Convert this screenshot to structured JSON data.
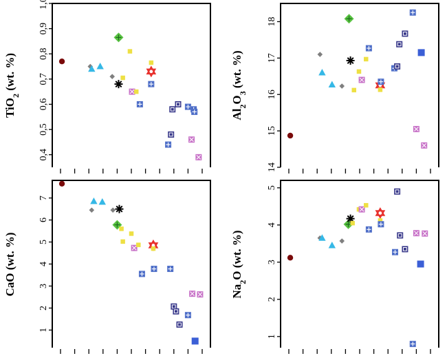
{
  "symbol_colors": {
    "dark_red": "#7a0a0a",
    "gray": "#7f7f7f",
    "cyan": "#35b8e6",
    "green": "#58c241",
    "yellow": "#eee044",
    "magenta_square": "#c873c8",
    "blue_square": "#4f6fc8",
    "navy_square": "#38388a",
    "bright_blue": "#3b5fd6",
    "red_star": "#e8302c",
    "black_asterisk": "#000000"
  },
  "chart_data": [
    {
      "type": "scatter",
      "ylabel": {
        "main": "TiO",
        "sub": "2",
        "rest": " (wt. %)"
      },
      "ylim": [
        0.35,
        1.0
      ],
      "yticks": [
        0.4,
        0.5,
        0.6,
        0.7,
        0.8,
        0.9,
        1.0
      ],
      "ytick_labels": [
        "0,4",
        "0,5",
        "0,6",
        "0,7",
        "0,8",
        "0,9",
        "1,0"
      ],
      "xlim": [
        0,
        10
      ],
      "xticks": [
        0,
        1,
        2,
        3,
        4,
        5,
        6,
        7,
        8,
        9,
        10
      ],
      "points": [
        {
          "x": 0.1,
          "y": 0.77,
          "marker": "circle",
          "color": "dark_red"
        },
        {
          "x": 2.1,
          "y": 0.75,
          "marker": "diamond",
          "color": "gray"
        },
        {
          "x": 2.2,
          "y": 0.74,
          "marker": "triangle",
          "color": "cyan"
        },
        {
          "x": 2.8,
          "y": 0.75,
          "marker": "triangle",
          "color": "cyan"
        },
        {
          "x": 3.65,
          "y": 0.71,
          "marker": "diamond",
          "color": "gray"
        },
        {
          "x": 4.1,
          "y": 0.865,
          "marker": "diamond_plus",
          "color": "green"
        },
        {
          "x": 4.1,
          "y": 0.68,
          "marker": "asterisk",
          "color": "black_asterisk"
        },
        {
          "x": 4.4,
          "y": 0.705,
          "marker": "square",
          "color": "yellow"
        },
        {
          "x": 4.9,
          "y": 0.81,
          "marker": "square",
          "color": "yellow"
        },
        {
          "x": 5.05,
          "y": 0.65,
          "marker": "square_x",
          "color": "magenta_square"
        },
        {
          "x": 5.35,
          "y": 0.65,
          "marker": "square",
          "color": "yellow"
        },
        {
          "x": 5.6,
          "y": 0.6,
          "marker": "square_plus",
          "color": "blue_square"
        },
        {
          "x": 6.4,
          "y": 0.765,
          "marker": "square",
          "color": "yellow"
        },
        {
          "x": 6.4,
          "y": 0.73,
          "marker": "hexstar",
          "color": "red_star"
        },
        {
          "x": 6.4,
          "y": 0.68,
          "marker": "square_plus",
          "color": "blue_square"
        },
        {
          "x": 7.6,
          "y": 0.44,
          "marker": "square_plus",
          "color": "blue_square"
        },
        {
          "x": 7.8,
          "y": 0.48,
          "marker": "square_dot",
          "color": "navy_square"
        },
        {
          "x": 7.9,
          "y": 0.58,
          "marker": "square_dot",
          "color": "navy_square"
        },
        {
          "x": 8.3,
          "y": 0.6,
          "marker": "square_dot",
          "color": "navy_square"
        },
        {
          "x": 9.0,
          "y": 0.59,
          "marker": "square_plus",
          "color": "blue_square"
        },
        {
          "x": 9.25,
          "y": 0.46,
          "marker": "square_x",
          "color": "magenta_square"
        },
        {
          "x": 9.4,
          "y": 0.58,
          "marker": "square_plus",
          "color": "blue_square"
        },
        {
          "x": 9.45,
          "y": 0.57,
          "marker": "square_plus",
          "color": "blue_square"
        },
        {
          "x": 9.75,
          "y": 0.39,
          "marker": "square_x",
          "color": "magenta_square"
        }
      ]
    },
    {
      "type": "scatter",
      "ylabel": {
        "main": "Al",
        "sub": "2",
        "mid": "O",
        "sub2": "3",
        "rest": " (wt. %)"
      },
      "ylim": [
        14.0,
        18.5
      ],
      "yticks": [
        14,
        15,
        16,
        17,
        18
      ],
      "ytick_labels": [
        "14",
        "15",
        "16",
        "17",
        "18"
      ],
      "xlim": [
        0,
        10
      ],
      "xticks": [
        0,
        1,
        2,
        3,
        4,
        5,
        6,
        7,
        8,
        9,
        10
      ],
      "points": [
        {
          "x": 0.1,
          "y": 14.87,
          "marker": "circle",
          "color": "dark_red"
        },
        {
          "x": 2.2,
          "y": 17.1,
          "marker": "diamond",
          "color": "gray"
        },
        {
          "x": 2.35,
          "y": 16.6,
          "marker": "triangle",
          "color": "cyan"
        },
        {
          "x": 3.05,
          "y": 16.27,
          "marker": "triangle",
          "color": "cyan"
        },
        {
          "x": 3.75,
          "y": 16.23,
          "marker": "diamond",
          "color": "gray"
        },
        {
          "x": 4.25,
          "y": 18.08,
          "marker": "diamond_plus",
          "color": "green"
        },
        {
          "x": 4.35,
          "y": 16.93,
          "marker": "asterisk",
          "color": "black_asterisk"
        },
        {
          "x": 4.6,
          "y": 16.12,
          "marker": "square",
          "color": "yellow"
        },
        {
          "x": 4.95,
          "y": 16.63,
          "marker": "square",
          "color": "yellow"
        },
        {
          "x": 5.15,
          "y": 16.4,
          "marker": "square_x",
          "color": "magenta_square"
        },
        {
          "x": 5.45,
          "y": 16.97,
          "marker": "square",
          "color": "yellow"
        },
        {
          "x": 5.65,
          "y": 17.27,
          "marker": "square_plus",
          "color": "blue_square"
        },
        {
          "x": 6.45,
          "y": 16.25,
          "marker": "hexstar",
          "color": "red_star"
        },
        {
          "x": 6.45,
          "y": 16.13,
          "marker": "square",
          "color": "yellow"
        },
        {
          "x": 6.5,
          "y": 16.35,
          "marker": "square_plus",
          "color": "blue_square"
        },
        {
          "x": 7.45,
          "y": 16.72,
          "marker": "square_plus",
          "color": "blue_square"
        },
        {
          "x": 7.65,
          "y": 16.77,
          "marker": "square_dot",
          "color": "navy_square"
        },
        {
          "x": 7.8,
          "y": 17.38,
          "marker": "square_dot",
          "color": "navy_square"
        },
        {
          "x": 8.2,
          "y": 17.67,
          "marker": "square_dot",
          "color": "navy_square"
        },
        {
          "x": 8.75,
          "y": 18.25,
          "marker": "square_plus",
          "color": "blue_square"
        },
        {
          "x": 9.0,
          "y": 15.05,
          "marker": "square_x",
          "color": "magenta_square"
        },
        {
          "x": 9.35,
          "y": 17.15,
          "marker": "square_solid",
          "color": "bright_blue"
        },
        {
          "x": 9.55,
          "y": 14.6,
          "marker": "square_x",
          "color": "magenta_square"
        }
      ]
    },
    {
      "type": "scatter",
      "ylabel": {
        "main": "CaO",
        "rest": " (wt. %)"
      },
      "ylim": [
        0.2,
        7.8
      ],
      "yticks": [
        1,
        2,
        3,
        4,
        5,
        6,
        7
      ],
      "ytick_labels": [
        "1",
        "2",
        "3",
        "4",
        "5",
        "6",
        "7"
      ],
      "xlim": [
        0,
        10
      ],
      "xticks": [
        0,
        1,
        2,
        3,
        4,
        5,
        6,
        7,
        8,
        9,
        10
      ],
      "points": [
        {
          "x": 0.1,
          "y": 7.65,
          "marker": "circle",
          "color": "dark_red"
        },
        {
          "x": 2.2,
          "y": 6.45,
          "marker": "diamond",
          "color": "gray"
        },
        {
          "x": 2.35,
          "y": 6.85,
          "marker": "triangle",
          "color": "cyan"
        },
        {
          "x": 2.95,
          "y": 6.82,
          "marker": "triangle",
          "color": "cyan"
        },
        {
          "x": 3.7,
          "y": 6.45,
          "marker": "diamond",
          "color": "gray"
        },
        {
          "x": 4.15,
          "y": 6.5,
          "marker": "asterisk",
          "color": "black_asterisk"
        },
        {
          "x": 4.0,
          "y": 5.78,
          "marker": "diamond_plus",
          "color": "green"
        },
        {
          "x": 4.3,
          "y": 5.6,
          "marker": "square",
          "color": "yellow"
        },
        {
          "x": 4.4,
          "y": 5.02,
          "marker": "square",
          "color": "yellow"
        },
        {
          "x": 5.0,
          "y": 5.38,
          "marker": "square",
          "color": "yellow"
        },
        {
          "x": 5.2,
          "y": 4.73,
          "marker": "square_x",
          "color": "magenta_square"
        },
        {
          "x": 5.5,
          "y": 4.87,
          "marker": "square",
          "color": "yellow"
        },
        {
          "x": 5.75,
          "y": 3.55,
          "marker": "square_plus",
          "color": "blue_square"
        },
        {
          "x": 6.55,
          "y": 4.85,
          "marker": "hexstar",
          "color": "red_star"
        },
        {
          "x": 6.55,
          "y": 4.7,
          "marker": "square",
          "color": "yellow"
        },
        {
          "x": 6.6,
          "y": 3.78,
          "marker": "square_plus",
          "color": "blue_square"
        },
        {
          "x": 7.75,
          "y": 3.78,
          "marker": "square_plus",
          "color": "blue_square"
        },
        {
          "x": 8.0,
          "y": 2.07,
          "marker": "square_dot",
          "color": "navy_square"
        },
        {
          "x": 8.15,
          "y": 1.85,
          "marker": "square_dot",
          "color": "navy_square"
        },
        {
          "x": 8.4,
          "y": 1.25,
          "marker": "square_dot",
          "color": "navy_square"
        },
        {
          "x": 9.0,
          "y": 1.68,
          "marker": "square_plus",
          "color": "blue_square"
        },
        {
          "x": 9.3,
          "y": 2.65,
          "marker": "square_x",
          "color": "magenta_square"
        },
        {
          "x": 9.5,
          "y": 0.5,
          "marker": "square_solid",
          "color": "bright_blue"
        },
        {
          "x": 9.85,
          "y": 2.62,
          "marker": "square_x",
          "color": "magenta_square"
        }
      ]
    },
    {
      "type": "scatter",
      "ylabel": {
        "main": "Na",
        "sub": "2",
        "mid": "O",
        "rest": " (wt. %)"
      },
      "ylim": [
        0.7,
        5.2
      ],
      "yticks": [
        1,
        2,
        3,
        4,
        5
      ],
      "ytick_labels": [
        "1",
        "2",
        "3",
        "4",
        "5"
      ],
      "xlim": [
        0,
        10
      ],
      "xticks": [
        0,
        1,
        2,
        3,
        4,
        5,
        6,
        7,
        8,
        9,
        10
      ],
      "points": [
        {
          "x": 0.1,
          "y": 3.12,
          "marker": "circle",
          "color": "dark_red"
        },
        {
          "x": 2.2,
          "y": 3.65,
          "marker": "diamond",
          "color": "gray"
        },
        {
          "x": 2.35,
          "y": 3.65,
          "marker": "triangle",
          "color": "cyan"
        },
        {
          "x": 3.05,
          "y": 3.45,
          "marker": "triangle",
          "color": "cyan"
        },
        {
          "x": 3.75,
          "y": 3.57,
          "marker": "diamond",
          "color": "gray"
        },
        {
          "x": 4.2,
          "y": 4.02,
          "marker": "diamond_plus",
          "color": "green"
        },
        {
          "x": 4.35,
          "y": 4.17,
          "marker": "asterisk",
          "color": "black_asterisk"
        },
        {
          "x": 4.5,
          "y": 4.05,
          "marker": "square",
          "color": "yellow"
        },
        {
          "x": 4.95,
          "y": 4.42,
          "marker": "square",
          "color": "yellow"
        },
        {
          "x": 5.15,
          "y": 4.42,
          "marker": "square_x",
          "color": "magenta_square"
        },
        {
          "x": 5.45,
          "y": 4.53,
          "marker": "square",
          "color": "yellow"
        },
        {
          "x": 5.65,
          "y": 3.88,
          "marker": "square_plus",
          "color": "blue_square"
        },
        {
          "x": 6.45,
          "y": 4.32,
          "marker": "hexstar",
          "color": "red_star"
        },
        {
          "x": 6.45,
          "y": 4.12,
          "marker": "square",
          "color": "yellow"
        },
        {
          "x": 6.5,
          "y": 4.02,
          "marker": "square_plus",
          "color": "blue_square"
        },
        {
          "x": 7.5,
          "y": 3.27,
          "marker": "square_plus",
          "color": "blue_square"
        },
        {
          "x": 7.65,
          "y": 4.9,
          "marker": "square_dot",
          "color": "navy_square"
        },
        {
          "x": 7.85,
          "y": 3.72,
          "marker": "square_dot",
          "color": "navy_square"
        },
        {
          "x": 8.2,
          "y": 3.35,
          "marker": "square_dot",
          "color": "navy_square"
        },
        {
          "x": 8.75,
          "y": 0.8,
          "marker": "square_plus",
          "color": "blue_square"
        },
        {
          "x": 9.0,
          "y": 3.78,
          "marker": "square_x",
          "color": "magenta_square"
        },
        {
          "x": 9.3,
          "y": 2.95,
          "marker": "square_solid",
          "color": "bright_blue"
        },
        {
          "x": 9.6,
          "y": 3.77,
          "marker": "square_x",
          "color": "magenta_square"
        }
      ]
    }
  ]
}
